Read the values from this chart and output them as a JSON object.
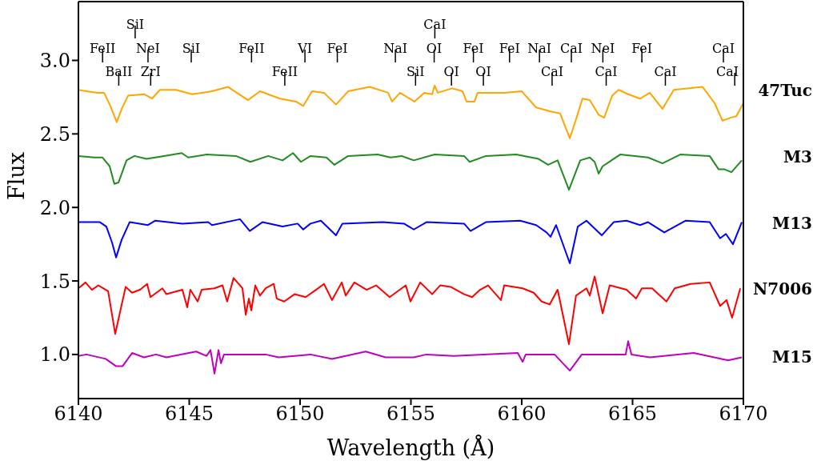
{
  "chart_data": {
    "type": "line",
    "xlabel": "Wavelength (Å)",
    "ylabel": "Flux",
    "xlim": [
      6140,
      6170
    ],
    "xticks": [
      6140,
      6145,
      6150,
      6155,
      6160,
      6165,
      6170
    ],
    "ylim": [
      0.7,
      3.4
    ],
    "yticks": [
      {
        "value": 1,
        "label": "1.0"
      },
      {
        "value": 1.5,
        "label": "1.5"
      },
      {
        "value": 2,
        "label": "2.0"
      },
      {
        "value": 2.5,
        "label": "2.5"
      },
      {
        "value": 3,
        "label": "3.0"
      }
    ],
    "grid": false,
    "legend": false,
    "marker": "none",
    "line_style": "solid",
    "series": [
      {
        "name": "47Tuc",
        "color": "#ffa500",
        "x": [
          6140.0,
          6140.36,
          6140.87,
          6141.16,
          6141.44,
          6141.73,
          6141.95,
          6142.24,
          6142.96,
          6143.32,
          6143.68,
          6144.4,
          6145.13,
          6146.03,
          6146.75,
          6147.65,
          6148.19,
          6149.1,
          6149.82,
          6150.14,
          6150.54,
          6151.08,
          6151.62,
          6152.17,
          6153.14,
          6153.97,
          6154.15,
          6154.51,
          6155.16,
          6155.6,
          6155.96,
          6156.07,
          6156.21,
          6156.86,
          6157.33,
          6157.51,
          6157.87,
          6158.01,
          6159.21,
          6160.0,
          6160.65,
          6161.37,
          6161.73,
          6162.17,
          6162.45,
          6162.74,
          6163.07,
          6163.47,
          6163.72,
          6164.08,
          6164.37,
          6164.8,
          6165.34,
          6165.78,
          6166.35,
          6166.86,
          6168.16,
          6168.7,
          6169.06,
          6169.42,
          6169.68,
          6170.0
        ],
        "values": [
          2.8,
          2.79,
          2.78,
          2.78,
          2.69,
          2.58,
          2.67,
          2.76,
          2.77,
          2.74,
          2.8,
          2.8,
          2.77,
          2.79,
          2.82,
          2.73,
          2.79,
          2.74,
          2.72,
          2.69,
          2.79,
          2.78,
          2.7,
          2.79,
          2.82,
          2.78,
          2.72,
          2.78,
          2.72,
          2.78,
          2.77,
          2.83,
          2.78,
          2.81,
          2.79,
          2.72,
          2.72,
          2.78,
          2.78,
          2.79,
          2.68,
          2.65,
          2.64,
          2.47,
          2.6,
          2.74,
          2.73,
          2.63,
          2.61,
          2.76,
          2.8,
          2.77,
          2.74,
          2.78,
          2.67,
          2.8,
          2.82,
          2.71,
          2.59,
          2.61,
          2.62,
          2.71
        ]
      },
      {
        "name": "M3",
        "color": "#228b22",
        "x": [
          6140.0,
          6140.72,
          6141.08,
          6141.41,
          6141.62,
          6141.81,
          6142.17,
          6142.53,
          6143.07,
          6143.86,
          6144.66,
          6144.95,
          6145.78,
          6147.11,
          6147.76,
          6148.56,
          6149.21,
          6149.68,
          6150.04,
          6150.47,
          6151.19,
          6151.55,
          6152.17,
          6153.5,
          6154.08,
          6154.58,
          6155.13,
          6156.07,
          6157.4,
          6157.65,
          6158.38,
          6159.75,
          6160.76,
          6161.19,
          6161.62,
          6162.13,
          6162.64,
          6163.07,
          6163.29,
          6163.47,
          6163.65,
          6164.44,
          6165.7,
          6166.35,
          6167.15,
          6168.48,
          6168.88,
          6169.13,
          6169.46,
          6169.93
        ],
        "values": [
          2.35,
          2.34,
          2.34,
          2.28,
          2.16,
          2.17,
          2.32,
          2.35,
          2.33,
          2.35,
          2.37,
          2.34,
          2.36,
          2.35,
          2.31,
          2.35,
          2.32,
          2.37,
          2.31,
          2.35,
          2.34,
          2.29,
          2.35,
          2.36,
          2.34,
          2.35,
          2.32,
          2.36,
          2.35,
          2.31,
          2.35,
          2.36,
          2.33,
          2.29,
          2.32,
          2.12,
          2.32,
          2.34,
          2.31,
          2.23,
          2.28,
          2.36,
          2.34,
          2.3,
          2.36,
          2.35,
          2.26,
          2.26,
          2.24,
          2.32
        ]
      },
      {
        "name": "M13",
        "color": "#0000ff",
        "x": [
          6140.0,
          6140.97,
          6141.26,
          6141.52,
          6141.7,
          6141.95,
          6142.31,
          6143.14,
          6143.47,
          6144.69,
          6145.85,
          6146.03,
          6147.29,
          6147.73,
          6148.3,
          6149.21,
          6149.89,
          6150.14,
          6150.47,
          6150.94,
          6151.62,
          6151.91,
          6153.72,
          6154.69,
          6155.13,
          6155.7,
          6157.4,
          6157.69,
          6158.38,
          6159.93,
          6160.65,
          6161.12,
          6161.3,
          6161.55,
          6162.17,
          6162.53,
          6162.92,
          6163.61,
          6164.15,
          6164.73,
          6165.34,
          6165.7,
          6166.43,
          6167.4,
          6168.48,
          6168.95,
          6169.21,
          6169.53,
          6169.93
        ],
        "values": [
          1.9,
          1.9,
          1.87,
          1.76,
          1.66,
          1.78,
          1.9,
          1.88,
          1.91,
          1.89,
          1.9,
          1.88,
          1.92,
          1.84,
          1.9,
          1.87,
          1.89,
          1.85,
          1.89,
          1.91,
          1.81,
          1.89,
          1.9,
          1.89,
          1.85,
          1.9,
          1.89,
          1.84,
          1.9,
          1.91,
          1.88,
          1.83,
          1.8,
          1.88,
          1.62,
          1.87,
          1.91,
          1.81,
          1.9,
          1.91,
          1.88,
          1.9,
          1.83,
          1.91,
          1.9,
          1.79,
          1.82,
          1.75,
          1.9
        ]
      },
      {
        "name": "N7006",
        "color": "#ff0000",
        "x": [
          6140.0,
          6140.32,
          6140.61,
          6140.9,
          6141.34,
          6141.66,
          6142.13,
          6142.42,
          6142.78,
          6143.1,
          6143.25,
          6143.79,
          6143.97,
          6144.69,
          6144.91,
          6145.05,
          6145.38,
          6145.56,
          6146.14,
          6146.5,
          6146.71,
          6147.0,
          6147.4,
          6147.55,
          6147.69,
          6147.8,
          6147.98,
          6148.19,
          6148.45,
          6148.81,
          6148.95,
          6149.28,
          6149.75,
          6150.25,
          6150.72,
          6151.08,
          6151.44,
          6151.88,
          6152.06,
          6152.45,
          6153.0,
          6153.43,
          6154.04,
          6154.77,
          6154.98,
          6155.42,
          6155.96,
          6156.32,
          6156.79,
          6157.4,
          6157.76,
          6158.12,
          6158.48,
          6159.06,
          6159.21,
          6160.04,
          6160.54,
          6160.9,
          6161.26,
          6161.62,
          6162.13,
          6162.45,
          6162.92,
          6163.07,
          6163.29,
          6163.65,
          6163.97,
          6164.73,
          6165.16,
          6165.42,
          6165.88,
          6166.53,
          6166.9,
          6167.62,
          6168.48,
          6168.95,
          6169.24,
          6169.49,
          6169.86
        ],
        "values": [
          1.45,
          1.49,
          1.44,
          1.47,
          1.43,
          1.14,
          1.46,
          1.42,
          1.44,
          1.48,
          1.39,
          1.45,
          1.41,
          1.44,
          1.32,
          1.44,
          1.36,
          1.44,
          1.45,
          1.47,
          1.36,
          1.52,
          1.45,
          1.27,
          1.38,
          1.3,
          1.47,
          1.4,
          1.45,
          1.48,
          1.38,
          1.36,
          1.41,
          1.39,
          1.44,
          1.48,
          1.37,
          1.49,
          1.4,
          1.49,
          1.44,
          1.47,
          1.39,
          1.47,
          1.36,
          1.49,
          1.41,
          1.47,
          1.46,
          1.41,
          1.39,
          1.44,
          1.47,
          1.37,
          1.47,
          1.45,
          1.42,
          1.36,
          1.34,
          1.44,
          1.07,
          1.4,
          1.45,
          1.4,
          1.53,
          1.28,
          1.47,
          1.44,
          1.38,
          1.45,
          1.45,
          1.36,
          1.45,
          1.48,
          1.49,
          1.33,
          1.37,
          1.25,
          1.45
        ]
      },
      {
        "name": "M15",
        "color": "#bf00bf",
        "x": [
          6140.0,
          6140.36,
          6141.23,
          6141.7,
          6141.99,
          6142.42,
          6142.96,
          6143.5,
          6143.97,
          6145.31,
          6145.78,
          6145.96,
          6146.14,
          6146.32,
          6146.43,
          6146.57,
          6148.45,
          6149.03,
          6150.47,
          6151.44,
          6152.96,
          6153.86,
          6155.13,
          6155.7,
          6156.93,
          6159.82,
          6160.04,
          6160.18,
          6161.48,
          6162.17,
          6162.71,
          6164.69,
          6164.8,
          6164.95,
          6165.78,
          6167.76,
          6169.31,
          6169.93
        ],
        "values": [
          0.99,
          1.0,
          0.97,
          0.92,
          0.92,
          1.01,
          0.98,
          1.0,
          0.98,
          1.02,
          0.99,
          1.03,
          0.87,
          1.03,
          0.94,
          1.0,
          1.0,
          0.98,
          1.0,
          0.97,
          1.02,
          0.98,
          0.98,
          1.0,
          0.99,
          1.01,
          0.95,
          1.0,
          1.0,
          0.89,
          1.0,
          1.0,
          1.09,
          1.0,
          0.98,
          1.01,
          0.96,
          0.98
        ]
      }
    ],
    "ref_lines": [
      {
        "axis": "x",
        "value": 6141.09,
        "label": "FeII"
      },
      {
        "axis": "x",
        "value": 6143.14,
        "label": "NeI"
      },
      {
        "axis": "x",
        "value": 6141.82,
        "label": "BaII"
      },
      {
        "axis": "x",
        "value": 6142.56,
        "label": "SiI"
      },
      {
        "axis": "x",
        "value": 6143.26,
        "label": "ZrI"
      },
      {
        "axis": "x",
        "value": 6145.09,
        "label": "SiI"
      },
      {
        "axis": "x",
        "value": 6147.81,
        "label": "FeII"
      },
      {
        "axis": "x",
        "value": 6149.31,
        "label": "FeII"
      },
      {
        "axis": "x",
        "value": 6150.22,
        "label": "VI"
      },
      {
        "axis": "x",
        "value": 6151.68,
        "label": "FeI"
      },
      {
        "axis": "x",
        "value": 6154.3,
        "label": "NaI"
      },
      {
        "axis": "x",
        "value": 6155.21,
        "label": "SiI"
      },
      {
        "axis": "x",
        "value": 6156.08,
        "label": "CaI"
      },
      {
        "axis": "x",
        "value": 6156.05,
        "label": "OI"
      },
      {
        "axis": "x",
        "value": 6156.83,
        "label": "OI"
      },
      {
        "axis": "x",
        "value": 6157.82,
        "label": "FeI"
      },
      {
        "axis": "x",
        "value": 6158.27,
        "label": "OI"
      },
      {
        "axis": "x",
        "value": 6159.45,
        "label": "FeI"
      },
      {
        "axis": "x",
        "value": 6160.8,
        "label": "NaI"
      },
      {
        "axis": "x",
        "value": 6161.37,
        "label": "CaI"
      },
      {
        "axis": "x",
        "value": 6162.24,
        "label": "CaI"
      },
      {
        "axis": "x",
        "value": 6163.66,
        "label": "NeI"
      },
      {
        "axis": "x",
        "value": 6163.81,
        "label": "CaI"
      },
      {
        "axis": "x",
        "value": 6165.42,
        "label": "FeI"
      },
      {
        "axis": "x",
        "value": 6166.48,
        "label": "CaI"
      },
      {
        "axis": "x",
        "value": 6169.1,
        "label": "CaI"
      },
      {
        "axis": "x",
        "value": 6169.61,
        "label": "CaI"
      }
    ]
  }
}
